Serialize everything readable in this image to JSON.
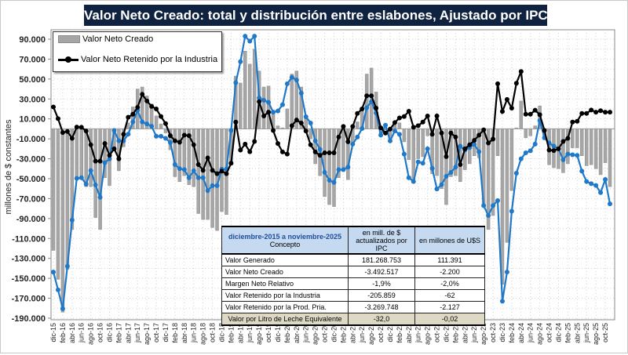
{
  "title": "Valor Neto Creado: total y distribución entre eslabones, Ajustado  por IPC",
  "chart_data": {
    "type": "bar+line",
    "title": "Valor Neto Creado: total y distribución entre eslabones, Ajustado  por IPC",
    "ylabel": "millones de $ constantes",
    "xlabel": "",
    "ylim": [
      -190000,
      90000
    ],
    "yticks": [
      90000,
      70000,
      50000,
      30000,
      10000,
      -10000,
      -30000,
      -50000,
      -70000,
      -90000,
      -110000,
      -130000,
      -150000,
      -170000,
      -190000
    ],
    "ytick_labels": [
      "90.000",
      "70.000",
      "50.000",
      "30.000",
      "10.000",
      "-10.000",
      "-30.000",
      "-50.000",
      "-70.000",
      "-90.000",
      "-110.000",
      "-130.000",
      "-150.000",
      "-170.000",
      "-190.000"
    ],
    "x_start": "dic-15",
    "x_end": "nov-25",
    "x_tick_labels": [
      "dic-15",
      "feb-16",
      "abr-16",
      "jun-16",
      "ago-16",
      "oct-16",
      "dic-16",
      "feb-17",
      "abr-17",
      "jun-17",
      "ago-17",
      "oct-17",
      "dic-17",
      "feb-18",
      "abr-18",
      "jun-18",
      "ago-18",
      "oct-18",
      "dic-18",
      "feb-19",
      "abr-19",
      "jun-19",
      "ago-19",
      "oct-19",
      "dic-19",
      "feb-20",
      "abr-20",
      "jun-20",
      "ago-20",
      "oct-20",
      "dic-20",
      "feb-21",
      "abr-21",
      "jun-21",
      "ago-21",
      "oct-21",
      "dic-21",
      "feb-22",
      "abr-22",
      "jun-22",
      "ago-22",
      "oct-22",
      "dic-22",
      "feb-23",
      "abr-23",
      "jun-23",
      "ago-23",
      "oct-23",
      "dic-23",
      "feb-24",
      "abr-24",
      "jun-24",
      "ago-24",
      "oct-24",
      "dic-24",
      "feb-25",
      "abr-25",
      "jun-25",
      "ago-25",
      "oct-25"
    ],
    "grid": true,
    "legend_position": "top-left",
    "colors": {
      "bars": "#a6a6a6",
      "industry": "#000000",
      "producer": "#1f78c8"
    },
    "series": [
      {
        "name": "Valor Neto Creado",
        "type": "bar",
        "values": [
          -122000,
          -151000,
          -184000,
          -141000,
          -101000,
          -48000,
          -47000,
          -58000,
          -58000,
          -89000,
          -101000,
          -49000,
          -57000,
          -22000,
          -42000,
          -18000,
          6000,
          22000,
          40000,
          42000,
          33000,
          25000,
          13000,
          5000,
          -4000,
          -21000,
          -48000,
          -53000,
          -47000,
          -56000,
          -58000,
          -85000,
          -91000,
          -91000,
          -99000,
          -102000,
          -83000,
          -86000,
          -36000,
          53000,
          46000,
          78000,
          65000,
          80000,
          58000,
          42000,
          43000,
          15000,
          3000,
          1000,
          20000,
          55000,
          58000,
          42000,
          10000,
          -10000,
          -35000,
          -47000,
          -68000,
          -76000,
          -78000,
          -49000,
          -39000,
          -51000,
          -13000,
          7000,
          20000,
          55000,
          61000,
          37000,
          -5000,
          -1000,
          -12000,
          4000,
          6000,
          -13000,
          -31000,
          -51000,
          -30000,
          -28000,
          -7000,
          -45000,
          -47000,
          -60000,
          -76000,
          -48000,
          -47000,
          -53000,
          -41000,
          -35000,
          -27000,
          -29000,
          -78000,
          -101000,
          -87000,
          -27000,
          -156000,
          -114000,
          -62000,
          1000,
          28000,
          -9000,
          -7000,
          3000,
          23000,
          -11000,
          -36000,
          -39000,
          -40000,
          -44000,
          -35000,
          -19000,
          -19000,
          -27000,
          -37000,
          -36000,
          -40000,
          -46000,
          -34000,
          -58000
        ]
      },
      {
        "name": "Valor Neto Retenido por la Industria",
        "type": "line",
        "values": [
          22000,
          10300,
          -3700,
          -2600,
          -9500,
          1800,
          1600,
          -2100,
          -16000,
          -32400,
          -32400,
          -14700,
          -26600,
          -20000,
          -30000,
          -5500,
          11600,
          14700,
          21600,
          34700,
          28000,
          22600,
          20000,
          12400,
          5300,
          -6800,
          -12000,
          -13400,
          -6300,
          -6800,
          -16000,
          -35800,
          -41600,
          -29200,
          -41600,
          -45000,
          -42400,
          -45000,
          -34500,
          6800,
          -21300,
          -15300,
          -23000,
          -12600,
          27400,
          12900,
          16800,
          -1600,
          -14700,
          -23200,
          -25300,
          3200,
          8900,
          5800,
          -2100,
          -16000,
          -23200,
          -26600,
          -24000,
          -24000,
          -24000,
          -8200,
          2400,
          -12900,
          2400,
          15500,
          20000,
          33200,
          33200,
          20800,
          1000,
          -4200,
          -300,
          6300,
          11000,
          12400,
          17600,
          1600,
          3200,
          6800,
          12900,
          -5500,
          12900,
          -4200,
          -27900,
          -4200,
          -8200,
          -35800,
          -20000,
          -16000,
          -11600,
          -6300,
          -1000,
          -14200,
          -10300,
          45300,
          17400,
          29500,
          20800,
          45800,
          57600,
          14700,
          14700,
          18700,
          14200,
          -1600,
          -21300,
          -21800,
          -20000,
          -12600,
          -9500,
          6800,
          7600,
          15500,
          15500,
          18900,
          16800,
          18200,
          16800,
          16800
        ]
      },
      {
        "type": "line",
        "values": [
          -143700,
          -161600,
          -180500,
          -137900,
          -91600,
          -49700,
          -49000,
          -55500,
          -41800,
          -56300,
          -68700,
          -34000,
          -30000,
          -1600,
          -12000,
          -12000,
          -5300,
          7000,
          18400,
          7000,
          5000,
          2600,
          -7400,
          -7400,
          -9500,
          -13700,
          -35800,
          -40000,
          -41000,
          -49000,
          -42000,
          -49000,
          -49000,
          -62000,
          -57000,
          -57000,
          -40500,
          -40500,
          -1600,
          46300,
          67400,
          93000,
          88000,
          93000,
          31000,
          28700,
          26600,
          16800,
          17900,
          24200,
          45300,
          51800,
          49000,
          35800,
          12100,
          5800,
          -12100,
          -20500,
          -43700,
          -51600,
          -53700,
          -41000,
          -41000,
          -38400,
          -15300,
          -8200,
          300,
          21300,
          27400,
          16000,
          -6300,
          3700,
          -12100,
          -2100,
          -5500,
          -25300,
          -49000,
          -52900,
          -33200,
          -34500,
          -20000,
          -39700,
          -60300,
          -56000,
          -47600,
          -43700,
          -38400,
          -17400,
          -21300,
          -18700,
          -15500,
          -23000,
          -77000,
          -87000,
          -77000,
          -72000,
          -173000,
          -143700,
          -82600,
          -44500,
          -30000,
          -24000,
          -22000,
          -15300,
          8400,
          -8900,
          -14200,
          -17400,
          -20000,
          -31000,
          -25300,
          -26000,
          -26600,
          -42400,
          -52900,
          -55000,
          -56800,
          -64000,
          -50800,
          -75300
        ]
      }
    ]
  },
  "legend": {
    "bar_label": "Valor Neto Creado",
    "line_label": "Valor Neto Retenido por la Industria"
  },
  "table": {
    "period": "diciembre-2015 a noviembre-2025",
    "concept_header": "Concepto",
    "col1_header": "en mill. de $ actualizados por IPC",
    "col2_header": "en millones de U$S",
    "rows": [
      {
        "label": "Valor Generado",
        "ars": "181.268.753",
        "usd": "111.391"
      },
      {
        "label": "Valor Neto Creado",
        "ars": "-3.492.517",
        "usd": "-2.200"
      },
      {
        "label": "Margen Neto Relativo",
        "ars": "-1,9%",
        "usd": "-2,0%"
      },
      {
        "label": "Valor Retenido por la Industria",
        "ars": "-205.859",
        "usd": "-62"
      },
      {
        "label": "Valor Retenido por la Prod. Pria.",
        "ars": "-3.269.748",
        "usd": "-2.127"
      },
      {
        "label": "Valor por Litro de Leche Equivalente",
        "ars": "-32,0",
        "usd": "-0,02"
      }
    ]
  }
}
